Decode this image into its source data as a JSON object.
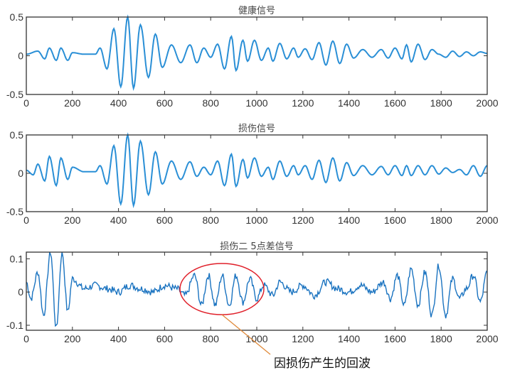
{
  "chart_data": [
    {
      "type": "line",
      "title": "健康信号",
      "xlabel": "",
      "ylabel": "",
      "xlim": [
        0,
        2000
      ],
      "ylim": [
        -0.5,
        0.5
      ],
      "xticks": [
        0,
        200,
        400,
        600,
        800,
        1000,
        1200,
        1400,
        1600,
        1800,
        2000
      ],
      "yticks": [
        -0.5,
        0,
        0.5
      ],
      "ytick_labels": [
        "-0.5",
        "0",
        "0.5"
      ],
      "grid": false,
      "color": "#1f77b4",
      "series": [
        {
          "name": "健康信号",
          "x": [
            0,
            50,
            80,
            100,
            130,
            150,
            180,
            200,
            250,
            300,
            320,
            350,
            380,
            410,
            440,
            465,
            495,
            530,
            560,
            590,
            630,
            670,
            710,
            740,
            770,
            800,
            830,
            860,
            890,
            910,
            940,
            960,
            990,
            1020,
            1050,
            1070,
            1100,
            1130,
            1160,
            1180,
            1210,
            1240,
            1270,
            1300,
            1330,
            1360,
            1390,
            1420,
            1460,
            1500,
            1540,
            1570,
            1600,
            1630,
            1650,
            1670,
            1700,
            1730,
            1760,
            1790,
            1820,
            1850,
            1880,
            1910,
            1940,
            1970,
            2000
          ],
          "y": [
            0.02,
            0.06,
            -0.04,
            0.1,
            -0.06,
            0.1,
            -0.06,
            0.04,
            0.02,
            0.02,
            0.1,
            -0.17,
            0.35,
            -0.4,
            0.5,
            -0.42,
            0.4,
            -0.28,
            0.28,
            -0.15,
            0.14,
            -0.09,
            0.14,
            -0.09,
            0.1,
            -0.02,
            0.15,
            -0.17,
            0.25,
            -0.19,
            0.2,
            -0.07,
            0.2,
            -0.06,
            0.1,
            -0.07,
            0.16,
            -0.04,
            0.1,
            -0.02,
            0.09,
            -0.05,
            0.17,
            -0.12,
            0.19,
            -0.1,
            0.15,
            -0.03,
            0.08,
            -0.02,
            0.08,
            -0.03,
            0.1,
            -0.04,
            0.14,
            -0.08,
            0.15,
            -0.05,
            0.08,
            0.02,
            -0.02,
            0.06,
            -0.01,
            0.05,
            0.0,
            0.05,
            0.03
          ]
        }
      ]
    },
    {
      "type": "line",
      "title": "损伤信号",
      "xlabel": "",
      "ylabel": "",
      "xlim": [
        0,
        2000
      ],
      "ylim": [
        -0.5,
        0.5
      ],
      "xticks": [
        0,
        200,
        400,
        600,
        800,
        1000,
        1200,
        1400,
        1600,
        1800,
        2000
      ],
      "yticks": [
        -0.5,
        0,
        0.5
      ],
      "ytick_labels": [
        "-0.5",
        "0",
        "0.5"
      ],
      "grid": false,
      "color": "#1f77b4",
      "series": [
        {
          "name": "损伤信号",
          "x": [
            0,
            30,
            50,
            80,
            100,
            130,
            150,
            180,
            200,
            250,
            300,
            320,
            350,
            380,
            410,
            440,
            465,
            495,
            530,
            560,
            590,
            630,
            670,
            710,
            740,
            770,
            800,
            830,
            860,
            890,
            910,
            940,
            960,
            990,
            1020,
            1050,
            1070,
            1100,
            1130,
            1160,
            1180,
            1210,
            1240,
            1270,
            1300,
            1330,
            1360,
            1390,
            1420,
            1460,
            1500,
            1540,
            1570,
            1600,
            1630,
            1650,
            1670,
            1700,
            1730,
            1760,
            1790,
            1820,
            1850,
            1880,
            1910,
            1940,
            1970,
            2000
          ],
          "y": [
            0.04,
            -0.02,
            0.12,
            -0.1,
            0.22,
            -0.16,
            0.2,
            -0.08,
            0.08,
            0.02,
            0.02,
            0.1,
            -0.14,
            0.36,
            -0.4,
            0.5,
            -0.42,
            0.42,
            -0.28,
            0.28,
            -0.14,
            0.16,
            -0.08,
            0.15,
            -0.04,
            0.08,
            -0.02,
            0.16,
            -0.16,
            0.25,
            -0.17,
            0.18,
            -0.06,
            0.2,
            -0.04,
            0.08,
            -0.08,
            0.16,
            -0.04,
            0.1,
            -0.02,
            0.1,
            -0.08,
            0.17,
            -0.12,
            0.2,
            -0.1,
            0.14,
            -0.03,
            0.1,
            -0.02,
            0.09,
            -0.02,
            0.1,
            -0.03,
            0.1,
            -0.03,
            0.1,
            -0.02,
            0.1,
            -0.01,
            0.07,
            0.01,
            0.05,
            -0.02,
            0.1,
            -0.04,
            0.1
          ]
        }
      ]
    },
    {
      "type": "line",
      "title": "损伤二 5点差信号",
      "xlabel": "",
      "ylabel": "",
      "xlim": [
        0,
        2000
      ],
      "ylim": [
        -0.115,
        0.12
      ],
      "xticks": [
        0,
        200,
        400,
        600,
        800,
        1000,
        1200,
        1400,
        1600,
        1800,
        2000
      ],
      "yticks": [
        -0.1,
        0,
        0.1
      ],
      "ytick_labels": [
        "-0.1",
        "0",
        "0.1"
      ],
      "grid": false,
      "color": "#1f77b4",
      "series": [
        {
          "name": "损伤二 5点差信号",
          "x": [
            0,
            20,
            50,
            75,
            105,
            130,
            155,
            180,
            200,
            250,
            300,
            350,
            400,
            450,
            500,
            550,
            600,
            650,
            690,
            730,
            760,
            790,
            820,
            850,
            880,
            910,
            940,
            970,
            1000,
            1030,
            1070,
            1100,
            1150,
            1200,
            1250,
            1300,
            1350,
            1400,
            1450,
            1500,
            1550,
            1580,
            1610,
            1640,
            1670,
            1700,
            1730,
            1760,
            1790,
            1820,
            1850,
            1880,
            1910,
            1940,
            1970,
            2000
          ],
          "y": [
            0.03,
            -0.02,
            0.06,
            -0.07,
            0.12,
            -0.11,
            0.12,
            -0.06,
            0.04,
            0.01,
            0.02,
            0.01,
            0.0,
            0.02,
            0.01,
            0.0,
            0.02,
            0.01,
            -0.01,
            0.05,
            -0.04,
            0.05,
            -0.04,
            0.05,
            -0.04,
            0.05,
            -0.03,
            0.04,
            -0.02,
            0.02,
            -0.01,
            0.03,
            0.0,
            0.02,
            -0.01,
            0.03,
            0.01,
            0.0,
            0.02,
            0.0,
            0.03,
            -0.02,
            0.05,
            -0.04,
            0.07,
            -0.04,
            0.06,
            -0.07,
            0.08,
            -0.07,
            0.04,
            -0.02,
            0.01,
            0.05,
            -0.03,
            0.06
          ]
        }
      ]
    }
  ],
  "annotation": {
    "text": "因损伤产生的回波",
    "ellipse_color": "#e0202a",
    "leader_color": "#e08a3a",
    "target_range_x": [
      670,
      1030
    ]
  }
}
